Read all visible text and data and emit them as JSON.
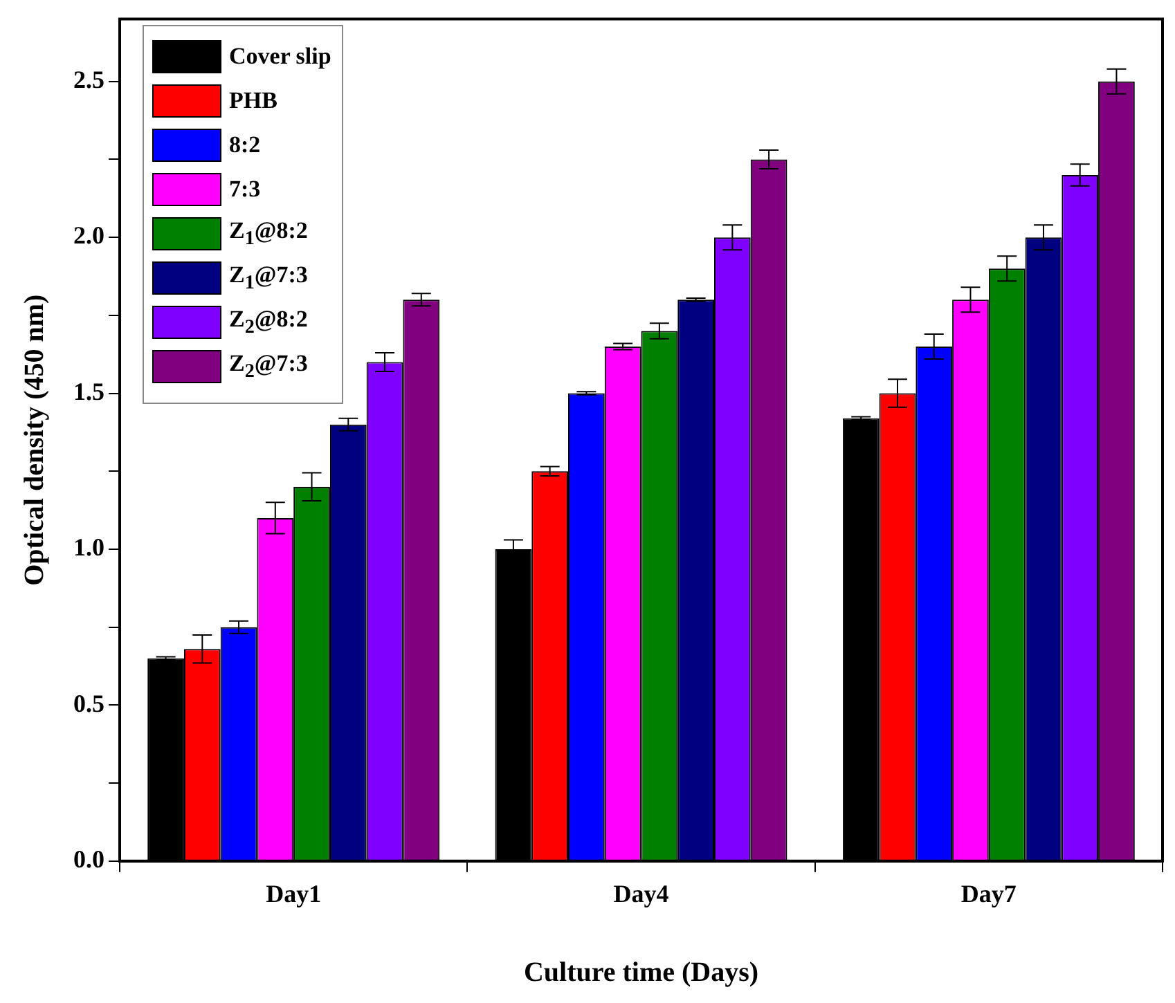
{
  "chart_data": {
    "type": "bar",
    "xlabel": "Culture time (Days)",
    "ylabel": "Optical density (450 nm)",
    "categories": [
      "Day1",
      "Day4",
      "Day7"
    ],
    "series": [
      {
        "name": "Cover slip",
        "color": "#000000",
        "values": [
          0.65,
          1.0,
          1.42
        ],
        "errors": [
          0.005,
          0.03,
          0.005
        ]
      },
      {
        "name": "PHB",
        "color": "#ff0000",
        "values": [
          0.68,
          1.25,
          1.5
        ],
        "errors": [
          0.045,
          0.015,
          0.045
        ]
      },
      {
        "name": "8:2",
        "color": "#0000ff",
        "values": [
          0.75,
          1.5,
          1.65
        ],
        "errors": [
          0.02,
          0.005,
          0.04
        ]
      },
      {
        "name": "7:3",
        "color": "#ff00ff",
        "values": [
          1.1,
          1.65,
          1.8
        ],
        "errors": [
          0.05,
          0.01,
          0.04
        ]
      },
      {
        "name": "Z$_{1}$@8:2",
        "color": "#008000",
        "values": [
          1.2,
          1.7,
          1.9
        ],
        "errors": [
          0.045,
          0.025,
          0.04
        ]
      },
      {
        "name": "Z$_{1}$@7:3",
        "color": "#000080",
        "values": [
          1.4,
          1.8,
          2.0
        ],
        "errors": [
          0.02,
          0.005,
          0.04
        ]
      },
      {
        "name": "Z$_{2}$@8:2",
        "color": "#8000ff",
        "values": [
          1.6,
          2.0,
          2.2
        ],
        "errors": [
          0.03,
          0.04,
          0.035
        ]
      },
      {
        "name": "Z$_{2}$@7:3",
        "color": "#800080",
        "values": [
          1.8,
          2.25,
          2.5
        ],
        "errors": [
          0.02,
          0.03,
          0.04
        ]
      }
    ],
    "ylim": [
      0,
      2.7
    ],
    "yticks": [
      {
        "value": 0,
        "label": "0.0"
      },
      {
        "value": 0.25,
        "label": null
      },
      {
        "value": 0.5,
        "label": "0.5"
      },
      {
        "value": 0.75,
        "label": null
      },
      {
        "value": 1,
        "label": "1.0"
      },
      {
        "value": 1.25,
        "label": null
      },
      {
        "value": 1.5,
        "label": "1.5"
      },
      {
        "value": 1.75,
        "label": null
      },
      {
        "value": 2,
        "label": "2.0"
      },
      {
        "value": 2.25,
        "label": null
      },
      {
        "value": 2.5,
        "label": "2.5"
      }
    ],
    "grid": false,
    "legend": "top left"
  }
}
